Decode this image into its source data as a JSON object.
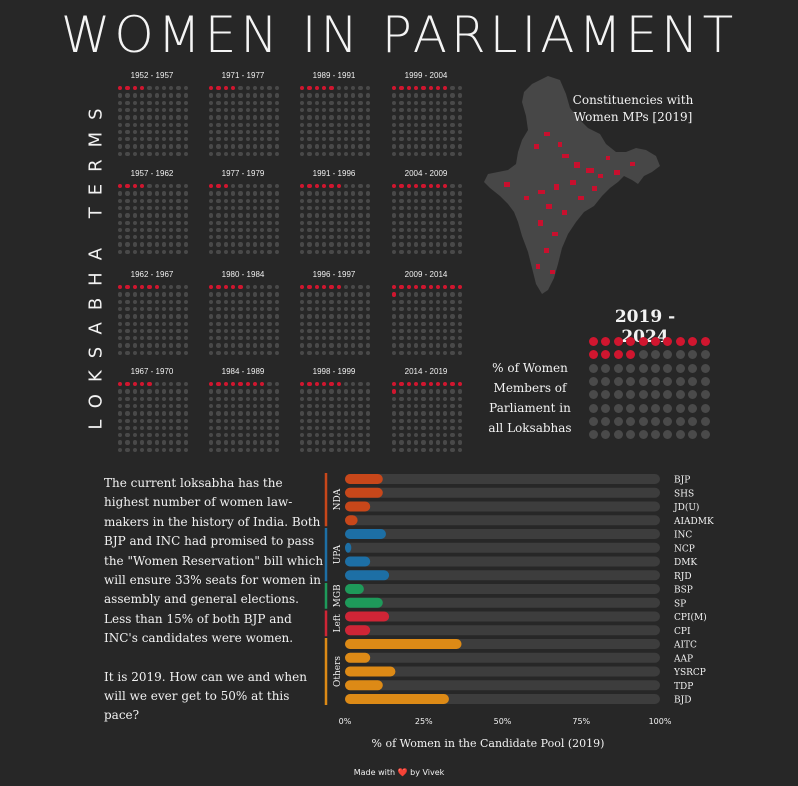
{
  "title": "WOMEN IN PARLIAMENT",
  "vertical_label": "LOKSABHA TERMS",
  "term_grids": [
    {
      "term": "1952 - 1957",
      "women": 4
    },
    {
      "term": "1971 - 1977",
      "women": 4
    },
    {
      "term": "1989 - 1991",
      "women": 5
    },
    {
      "term": "1999 - 2004",
      "women": 8
    },
    {
      "term": "1957 - 1962",
      "women": 4
    },
    {
      "term": "1977 - 1979",
      "women": 3
    },
    {
      "term": "1991 - 1996",
      "women": 6
    },
    {
      "term": "2004 - 2009",
      "women": 8
    },
    {
      "term": "1962 - 1967",
      "women": 6
    },
    {
      "term": "1980 - 1984",
      "women": 5
    },
    {
      "term": "1996 - 1997",
      "women": 6
    },
    {
      "term": "2009 - 2014",
      "women": 11
    },
    {
      "term": "1967 - 1970",
      "women": 5
    },
    {
      "term": "1984 - 1989",
      "women": 8
    },
    {
      "term": "1998 - 1999",
      "women": 6
    },
    {
      "term": "2014 - 2019",
      "women": 11
    }
  ],
  "map": {
    "title": "Constituencies with Women MPs [2019]"
  },
  "current": {
    "term": "2019 - 2024",
    "women": 14,
    "total": 80
  },
  "pct_note": "% of Women Members of Parliament in all Loksabhas",
  "paragraphs": [
    "The current loksabha has the highest number of women law-makers in the history of India. Both BJP and INC had promised to pass the \"Women Reservation\" bill which will ensure 33% seats for women in assembly and general elections. Less than 15% of both BJP and INC's candidates were women.",
    "It is 2019.  How can we and when will we ever get to 50% at this pace?"
  ],
  "chart_data": {
    "type": "bar",
    "orientation": "horizontal",
    "xlabel": "% of Women in the Candidate Pool (2019)",
    "xlim": [
      0,
      100
    ],
    "xticks": [
      "0%",
      "25%",
      "50%",
      "75%",
      "100%"
    ],
    "groups": [
      {
        "name": "NDA",
        "color": "#c8471a",
        "parties": [
          {
            "party": "BJP",
            "value": 12
          },
          {
            "party": "SHS",
            "value": 12
          },
          {
            "party": "JD(U)",
            "value": 8
          },
          {
            "party": "AIADMK",
            "value": 4
          }
        ]
      },
      {
        "name": "UPA",
        "color": "#1d6fa5",
        "parties": [
          {
            "party": "INC",
            "value": 13
          },
          {
            "party": "NCP",
            "value": 2
          },
          {
            "party": "DMK",
            "value": 8
          },
          {
            "party": "RJD",
            "value": 14
          }
        ]
      },
      {
        "name": "MGB",
        "color": "#1e9a5a",
        "parties": [
          {
            "party": "BSP",
            "value": 6
          },
          {
            "party": "SP",
            "value": 12
          }
        ]
      },
      {
        "name": "Left",
        "color": "#cf2536",
        "parties": [
          {
            "party": "CPI(M)",
            "value": 14
          },
          {
            "party": "CPI",
            "value": 8
          }
        ]
      },
      {
        "name": "Others",
        "color": "#dd8a16",
        "parties": [
          {
            "party": "AITC",
            "value": 37
          },
          {
            "party": "AAP",
            "value": 8
          },
          {
            "party": "YSRCP",
            "value": 16
          },
          {
            "party": "TDP",
            "value": 12
          },
          {
            "party": "BJD",
            "value": 33
          }
        ]
      }
    ]
  },
  "footer": {
    "text_before": "Made with",
    "heart": "❤️",
    "text_after": "by Vivek"
  }
}
